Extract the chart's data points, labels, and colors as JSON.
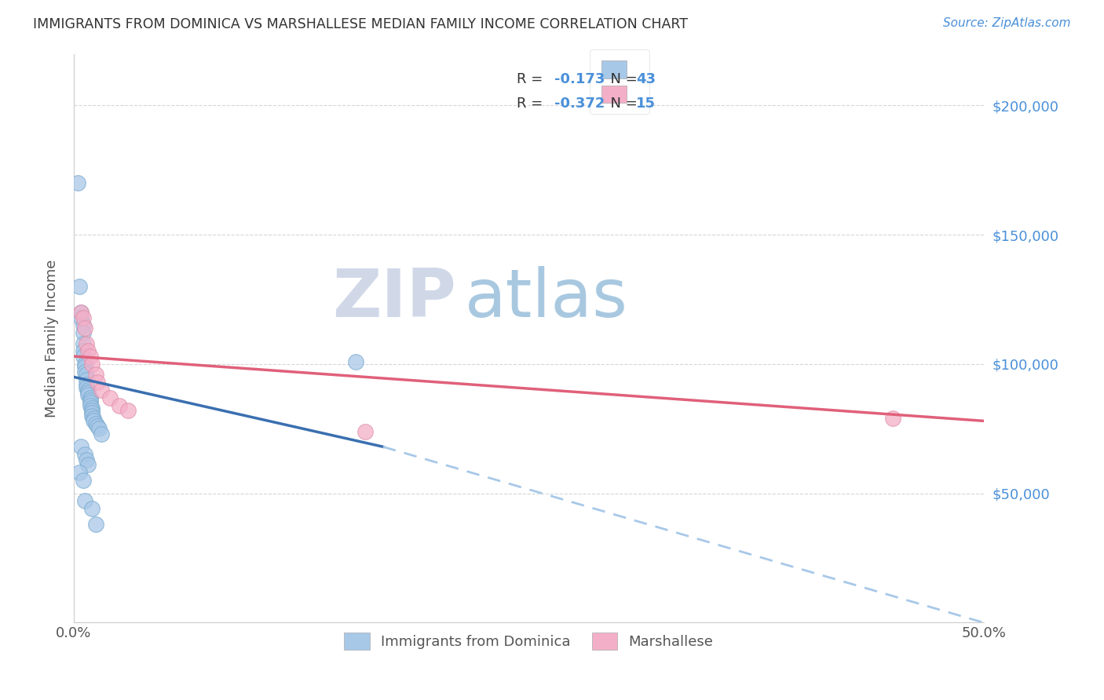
{
  "title": "IMMIGRANTS FROM DOMINICA VS MARSHALLESE MEDIAN FAMILY INCOME CORRELATION CHART",
  "source": "Source: ZipAtlas.com",
  "ylabel": "Median Family Income",
  "xlim": [
    0.0,
    0.5
  ],
  "ylim": [
    0,
    220000
  ],
  "dominica_color": "#a8c8e8",
  "dominica_edge": "#7aabcf",
  "marshallese_color": "#f4afc8",
  "marshallese_edge": "#e090a8",
  "trend_dominica_solid_color": "#3a6fb0",
  "trend_marshallese_color": "#e0607a",
  "trend_dominica_dash_color": "#a8c8e8",
  "watermark_zip_color": "#d0d8e8",
  "watermark_atlas_color": "#a0c0e0",
  "R_dominica": -0.173,
  "N_dominica": 43,
  "R_marshallese": -0.372,
  "N_marshallese": 15,
  "legend_text_color": "#3a6fb0",
  "background_color": "#ffffff",
  "grid_color": "#cccccc",
  "dominica_points": [
    [
      0.002,
      170000
    ],
    [
      0.003,
      130000
    ],
    [
      0.004,
      120000
    ],
    [
      0.004,
      118000
    ],
    [
      0.005,
      115000
    ],
    [
      0.005,
      112000
    ],
    [
      0.005,
      108000
    ],
    [
      0.005,
      105000
    ],
    [
      0.005,
      103000
    ],
    [
      0.006,
      100000
    ],
    [
      0.006,
      99000
    ],
    [
      0.006,
      97000
    ],
    [
      0.007,
      96000
    ],
    [
      0.007,
      94000
    ],
    [
      0.007,
      92000
    ],
    [
      0.007,
      91000
    ],
    [
      0.008,
      90000
    ],
    [
      0.008,
      89000
    ],
    [
      0.008,
      88000
    ],
    [
      0.009,
      87000
    ],
    [
      0.009,
      86000
    ],
    [
      0.009,
      85000
    ],
    [
      0.009,
      84000
    ],
    [
      0.01,
      83000
    ],
    [
      0.01,
      82000
    ],
    [
      0.01,
      81000
    ],
    [
      0.01,
      80000
    ],
    [
      0.011,
      79000
    ],
    [
      0.011,
      78000
    ],
    [
      0.012,
      77000
    ],
    [
      0.013,
      76000
    ],
    [
      0.014,
      75000
    ],
    [
      0.015,
      73000
    ],
    [
      0.004,
      68000
    ],
    [
      0.006,
      65000
    ],
    [
      0.007,
      63000
    ],
    [
      0.008,
      61000
    ],
    [
      0.003,
      58000
    ],
    [
      0.005,
      55000
    ],
    [
      0.006,
      47000
    ],
    [
      0.01,
      44000
    ],
    [
      0.012,
      38000
    ],
    [
      0.155,
      101000
    ]
  ],
  "marshallese_points": [
    [
      0.004,
      120000
    ],
    [
      0.005,
      118000
    ],
    [
      0.006,
      114000
    ],
    [
      0.007,
      108000
    ],
    [
      0.008,
      105000
    ],
    [
      0.009,
      103000
    ],
    [
      0.01,
      100000
    ],
    [
      0.012,
      96000
    ],
    [
      0.013,
      93000
    ],
    [
      0.015,
      90000
    ],
    [
      0.02,
      87000
    ],
    [
      0.025,
      84000
    ],
    [
      0.03,
      82000
    ],
    [
      0.16,
      74000
    ],
    [
      0.45,
      79000
    ]
  ],
  "dom_trend_x0": 0.0,
  "dom_trend_y0": 95000,
  "dom_trend_x1": 0.17,
  "dom_trend_y1": 68000,
  "dom_trend_ext_x1": 0.5,
  "dom_trend_ext_y1": 0,
  "mar_trend_x0": 0.0,
  "mar_trend_y0": 103000,
  "mar_trend_x1": 0.5,
  "mar_trend_y1": 78000
}
